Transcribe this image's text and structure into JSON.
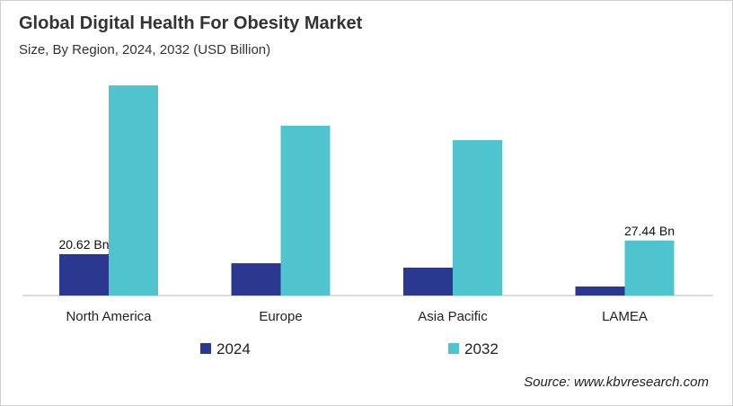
{
  "chart_data": {
    "type": "bar",
    "title": "Global Digital Health For Obesity Market",
    "subtitle": "Size, By Region, 2024, 2032 (USD Billion)",
    "categories": [
      "North America",
      "Europe",
      "Asia Pacific",
      "LAMEA"
    ],
    "series": [
      {
        "name": "2024",
        "color": "#2b388f",
        "values": [
          20.62,
          16.1,
          13.9,
          4.5
        ]
      },
      {
        "name": "2032",
        "color": "#4fc4cf",
        "values": [
          104.8,
          84.7,
          77.5,
          27.44
        ]
      }
    ],
    "data_labels": [
      {
        "series": "2024",
        "category": "North America",
        "text": "20.62 Bn"
      },
      {
        "series": "2032",
        "category": "LAMEA",
        "text": "27.44 Bn"
      }
    ],
    "ylim": [
      0,
      115
    ],
    "grid": false,
    "legend": "bottom",
    "source": "Source: www.kbvresearch.com"
  }
}
